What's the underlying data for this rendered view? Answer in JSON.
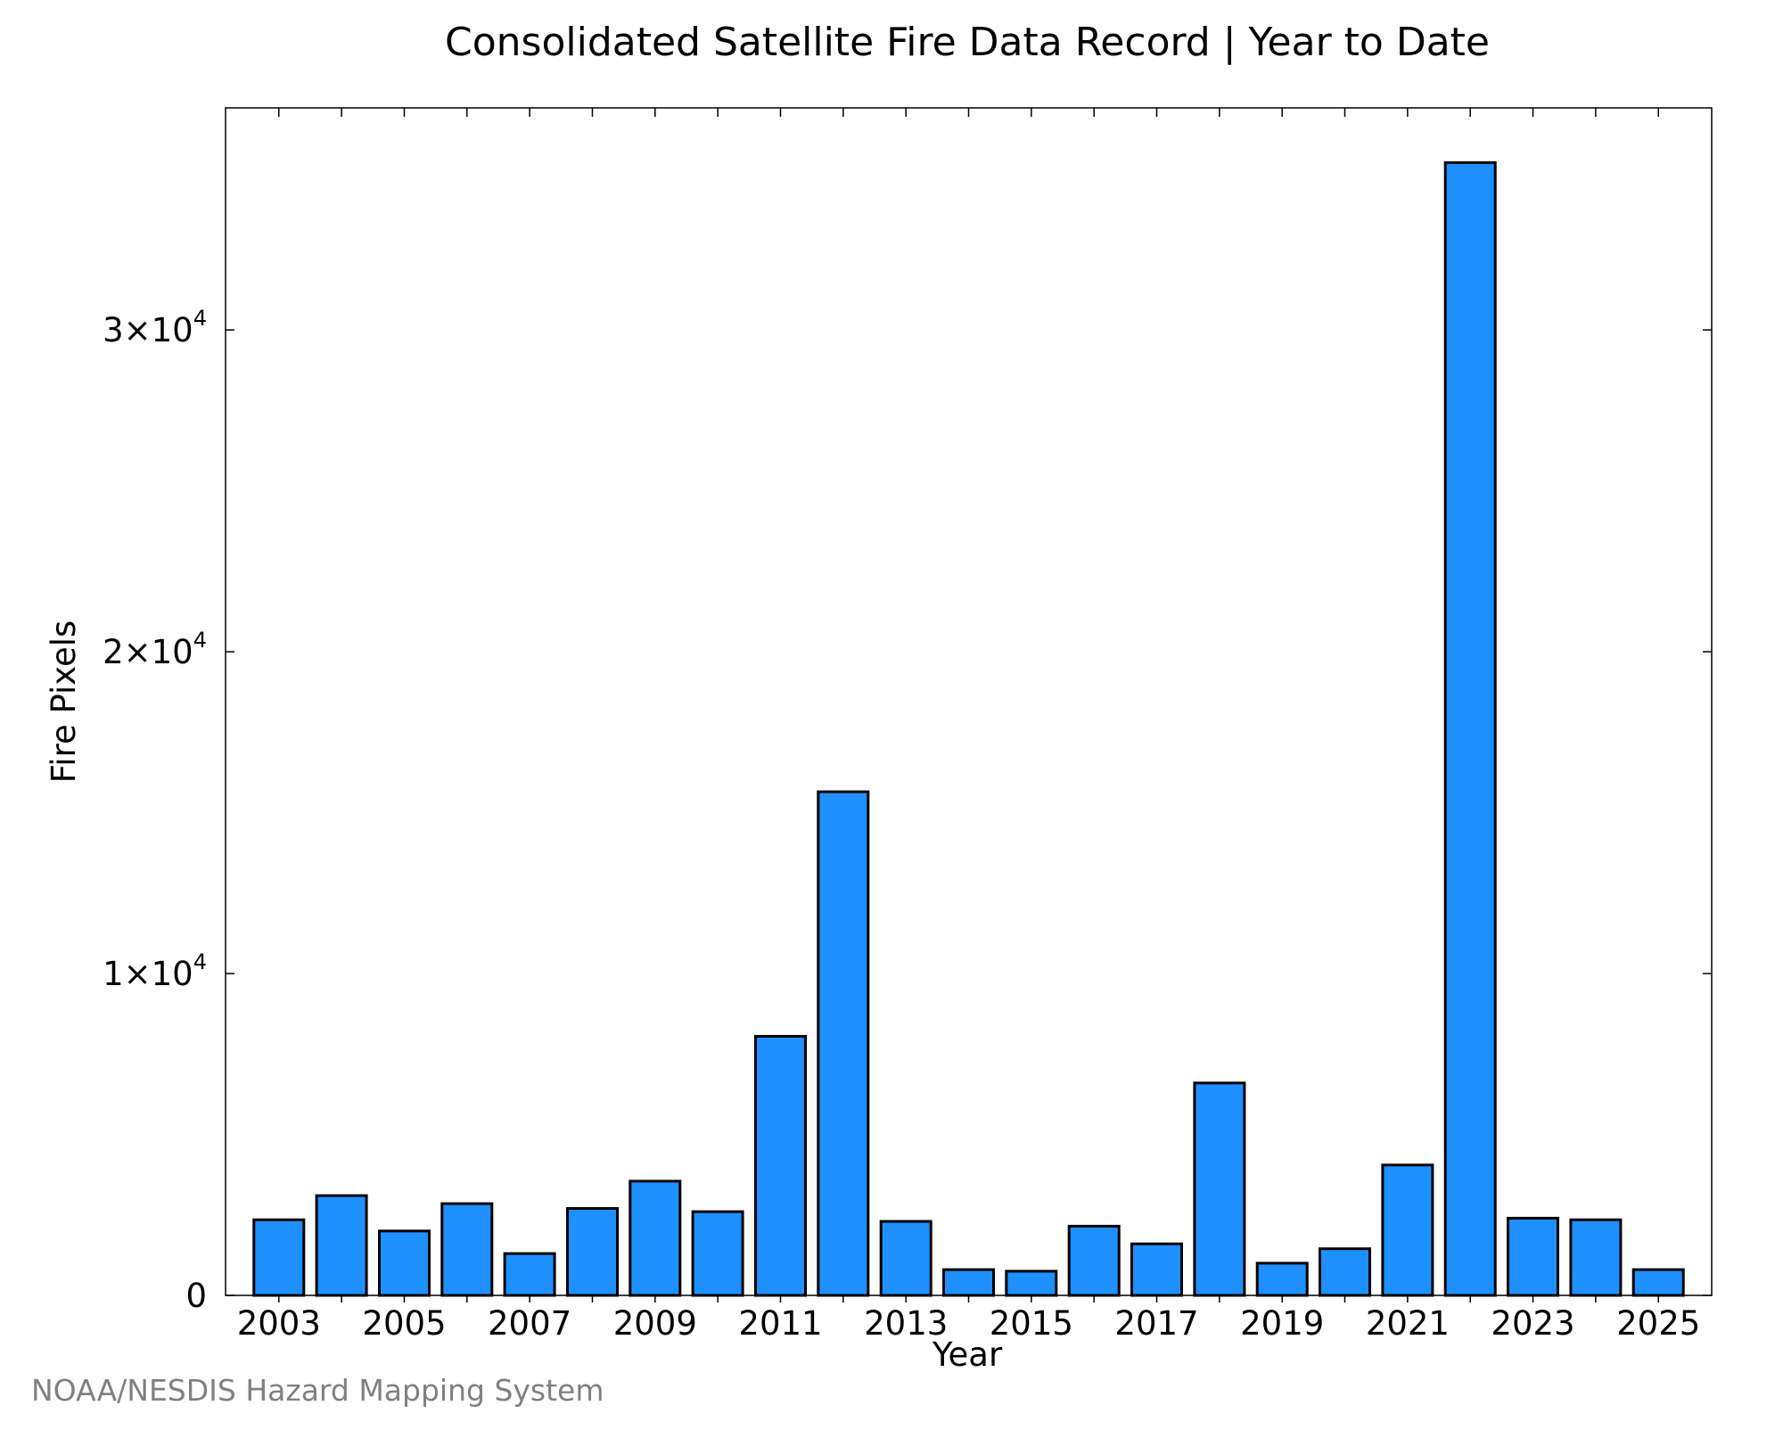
{
  "chart_data": {
    "type": "bar",
    "title": "Consolidated Satellite Fire Data Record | Year to Date",
    "xlabel": "Year",
    "ylabel": "Fire Pixels",
    "x": [
      2003,
      2004,
      2005,
      2006,
      2007,
      2008,
      2009,
      2010,
      2011,
      2012,
      2013,
      2014,
      2015,
      2016,
      2017,
      2018,
      2019,
      2020,
      2021,
      2022,
      2023,
      2024,
      2025
    ],
    "values": [
      2350,
      3100,
      2000,
      2850,
      1300,
      2700,
      3550,
      2600,
      8050,
      15650,
      2300,
      800,
      750,
      2150,
      1600,
      6600,
      1000,
      1450,
      4050,
      35200,
      2400,
      2350,
      800
    ],
    "xticks": [
      "2003",
      "2005",
      "2007",
      "2009",
      "2011",
      "2013",
      "2015",
      "2017",
      "2019",
      "2021",
      "2023",
      "2025"
    ],
    "yticks": [
      {
        "value": 0,
        "mant": "0",
        "exp": ""
      },
      {
        "value": 10000,
        "mant": "1×10",
        "exp": "4"
      },
      {
        "value": 20000,
        "mant": "2×10",
        "exp": "4"
      },
      {
        "value": 30000,
        "mant": "3×10",
        "exp": "4"
      }
    ],
    "xlim": [
      2002.15,
      2025.85
    ],
    "ylim": [
      0,
      36900
    ],
    "grid": false,
    "legend": "none",
    "bar_color": "#1E90FF",
    "edge_color": "#000000"
  },
  "footer": {
    "source": "NOAA/NESDIS Hazard Mapping System"
  }
}
